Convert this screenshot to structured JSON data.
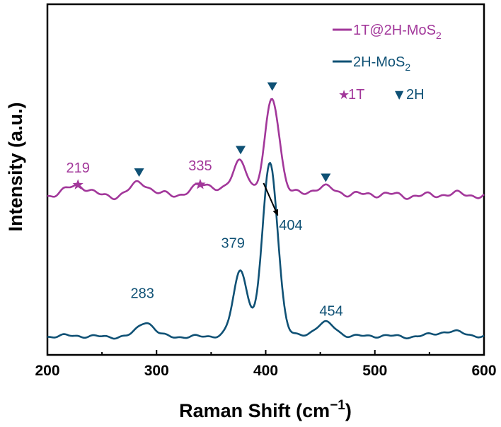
{
  "chart_data": {
    "type": "line",
    "xlabel": "Raman Shift",
    "xlabel_unit": "(cm",
    "xlabel_sup": "−1",
    "xlabel_close": ")",
    "ylabel": "Intensity (a.u.)",
    "xlim": [
      200,
      600
    ],
    "ylim": [
      0,
      100
    ],
    "x_ticks": [
      200,
      300,
      400,
      500,
      600
    ],
    "x_tick_labels": [
      "200",
      "300",
      "400",
      "500",
      "600"
    ],
    "legend_position": "top-right",
    "colors": {
      "purple": "#a2379a",
      "blue": "#0f5175"
    },
    "series": [
      {
        "name": "1T@2H-MoS2",
        "legend_main": "1T@2H-MoS",
        "legend_sub": "2",
        "color": "#a2379a",
        "baseline": 45.6,
        "bump_height": 1.1,
        "peaks": [
          {
            "x": 228,
            "h": 2.6,
            "w": 9
          },
          {
            "x": 285,
            "h": 3.4,
            "w": 8
          },
          {
            "x": 344,
            "h": 3.0,
            "w": 12
          },
          {
            "x": 377,
            "h": 10.0,
            "w": 6.5
          },
          {
            "x": 406,
            "h": 28.0,
            "w": 6.5
          },
          {
            "x": 455,
            "h": 2.2,
            "w": 12
          }
        ]
      },
      {
        "name": "2H-MoS2",
        "legend_main": "2H-MoS",
        "legend_sub": "2",
        "color": "#0f5175",
        "baseline": 5.3,
        "bump_height": 0.6,
        "peaks": [
          {
            "x": 290,
            "h": 4.0,
            "w": 7
          },
          {
            "x": 377,
            "h": 18.8,
            "w": 6.5
          },
          {
            "x": 404,
            "h": 49.5,
            "w": 7
          },
          {
            "x": 455,
            "h": 3.9,
            "w": 9
          },
          {
            "x": 568,
            "h": 1.2,
            "w": 14
          }
        ]
      }
    ],
    "markers_legend": [
      {
        "symbol": "★",
        "label": "1T",
        "color": "#a2379a"
      },
      {
        "symbol": "▼",
        "label": "2H",
        "color": "#0f5175"
      }
    ],
    "peak_markers": [
      {
        "type": "star",
        "x": 228,
        "y": 48.5,
        "color": "#a2379a"
      },
      {
        "type": "star",
        "x": 340,
        "y": 48.6,
        "color": "#a2379a"
      },
      {
        "type": "triangle",
        "x": 284,
        "y": 52.0,
        "color": "#0f5175"
      },
      {
        "type": "triangle",
        "x": 377,
        "y": 58.4,
        "color": "#0f5175"
      },
      {
        "type": "triangle",
        "x": 406,
        "y": 76.5,
        "color": "#0f5175"
      },
      {
        "type": "triangle",
        "x": 455,
        "y": 50.5,
        "color": "#0f5175"
      }
    ],
    "annotations": [
      {
        "text": "219",
        "x": 228,
        "y": 52.0,
        "color": "#a2379a"
      },
      {
        "text": "335",
        "x": 340,
        "y": 52.6,
        "color": "#a2379a"
      },
      {
        "text": "283",
        "x": 287,
        "y": 16.2,
        "color": "#0f5175"
      },
      {
        "text": "379",
        "x": 370,
        "y": 30.5,
        "color": "#0f5175"
      },
      {
        "text": "404",
        "x": 423,
        "y": 35.7,
        "color": "#0f5175"
      },
      {
        "text": "454",
        "x": 460,
        "y": 11.2,
        "color": "#0f5175"
      }
    ],
    "arrow": {
      "from": [
        398,
        49.0
      ],
      "to": [
        411,
        39.8
      ]
    }
  }
}
